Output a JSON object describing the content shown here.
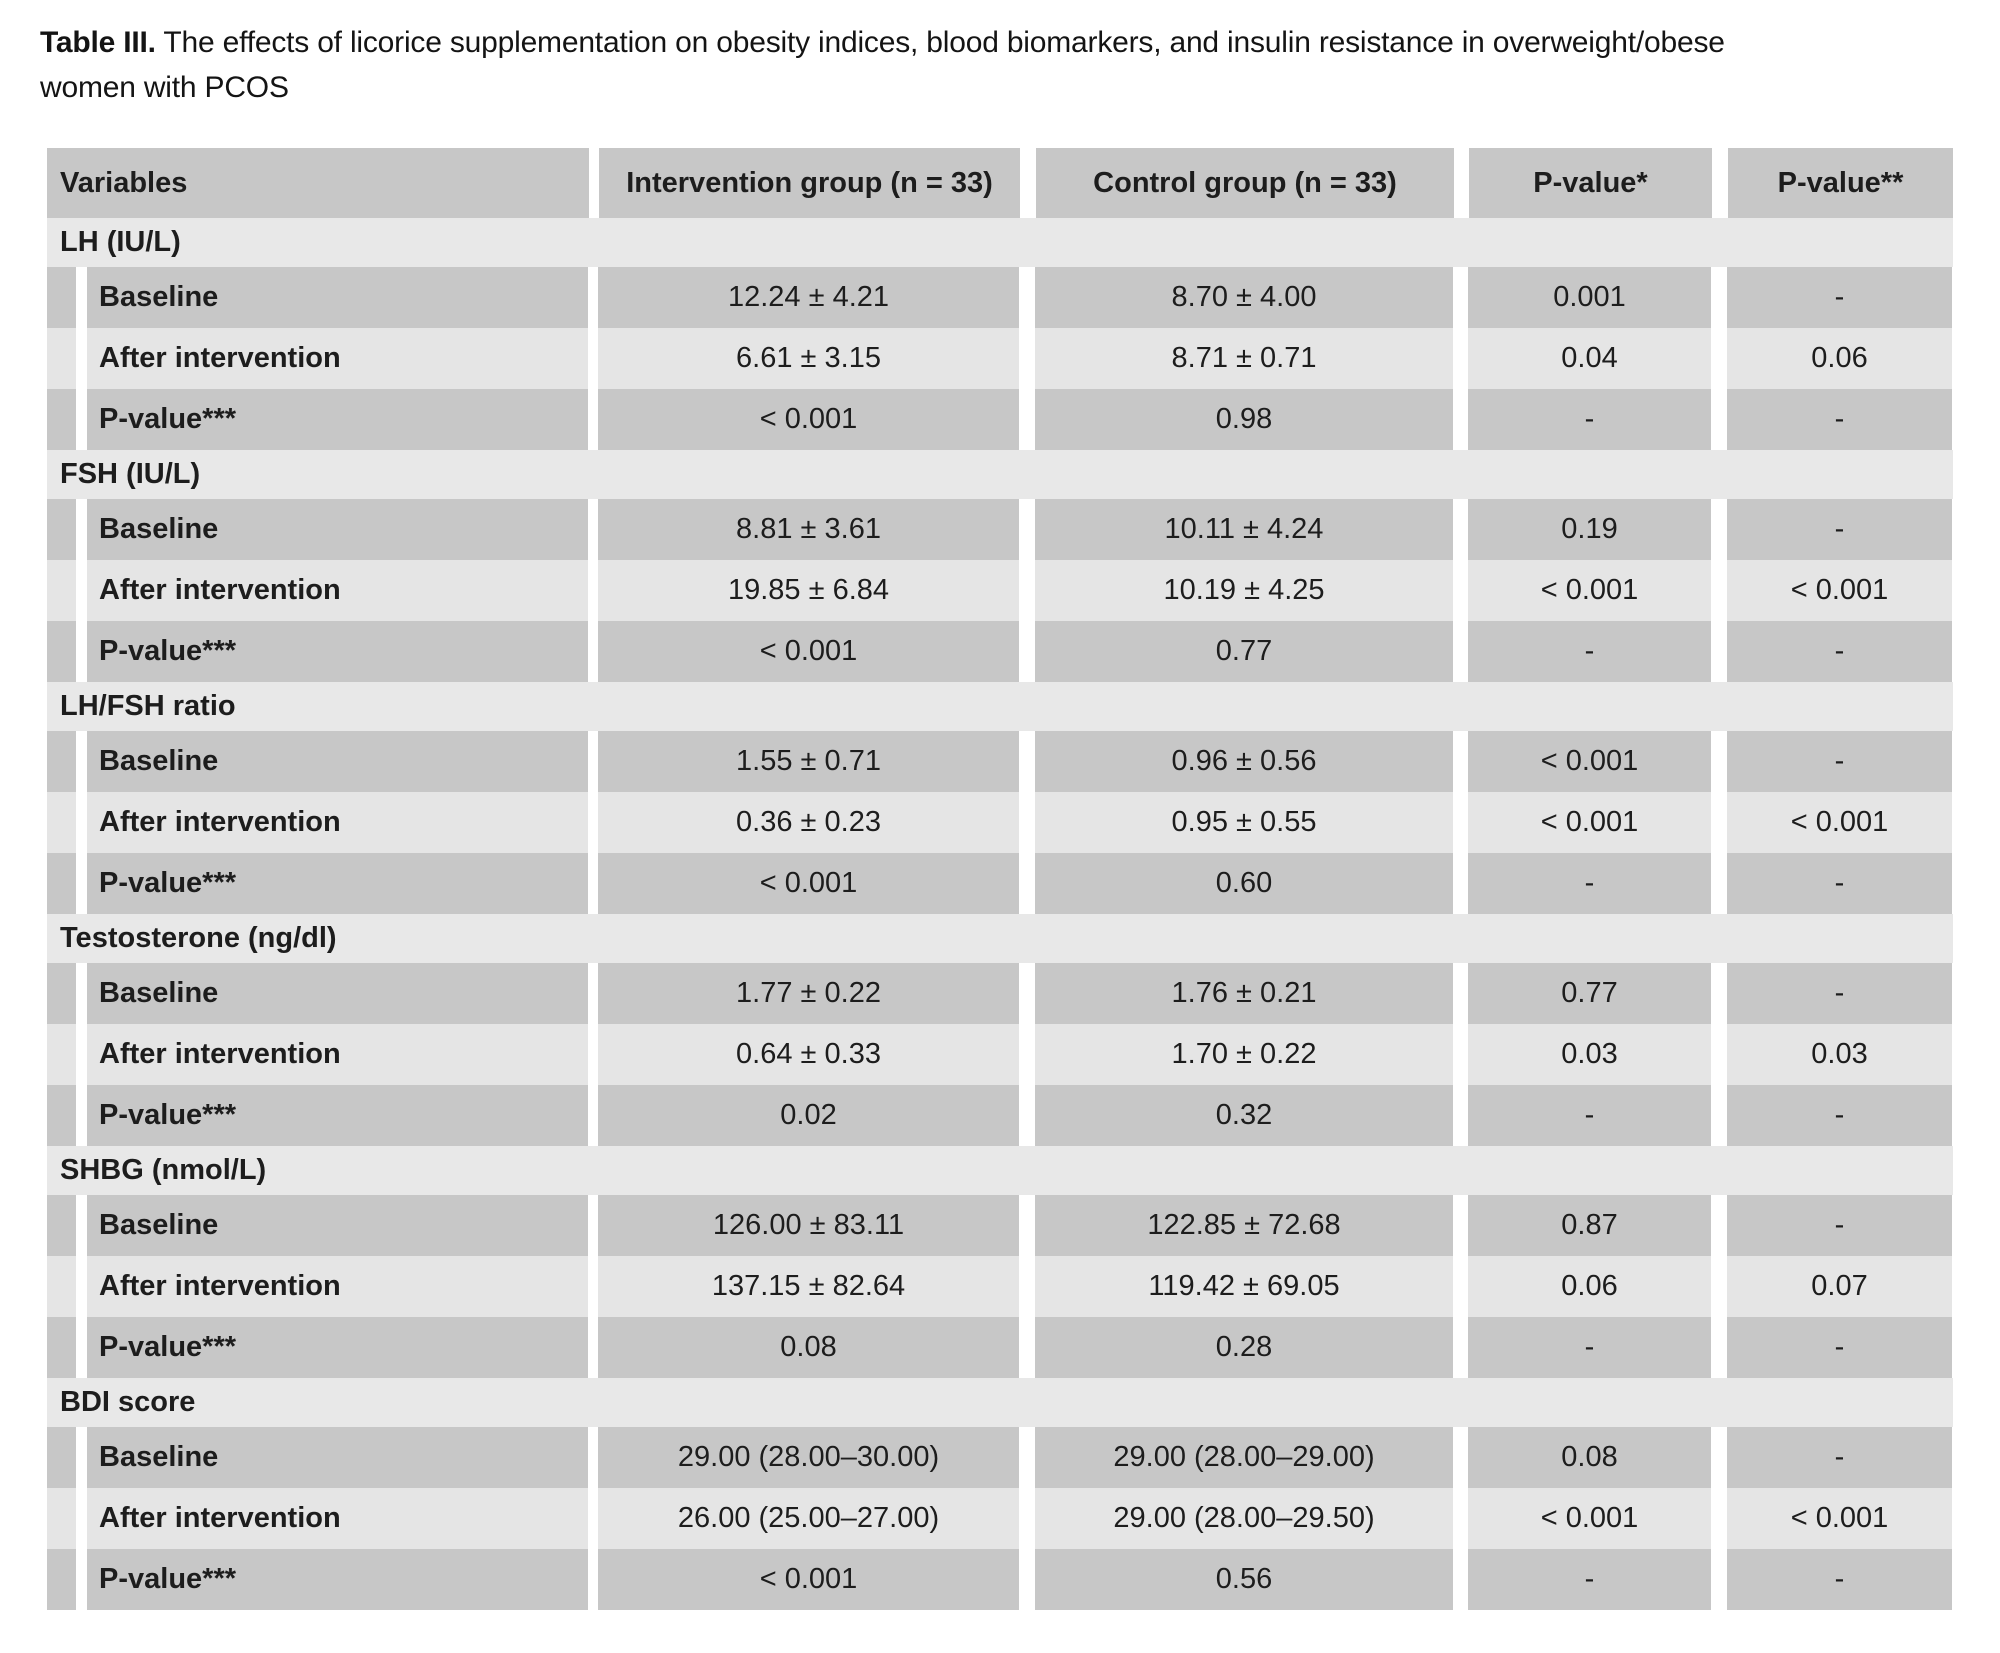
{
  "title": {
    "prefix": "Table III.",
    "line1_rest": "The effects of licorice supplementation on obesity indices, blood biomarkers, and insulin resistance in overweight/obese",
    "line2": "women with PCOS"
  },
  "table": {
    "columns": [
      "Variables",
      "Intervention group (n = 33)",
      "Control group (n = 33)",
      "P-value*",
      "P-value**"
    ],
    "sections": [
      {
        "name": "LH (IU/L)",
        "rows": [
          {
            "label": "Baseline",
            "intervention": "12.24 ± 4.21",
            "control": "8.70 ± 4.00",
            "p1": "0.001",
            "p2": "-"
          },
          {
            "label": "After intervention",
            "intervention": "6.61 ± 3.15",
            "control": "8.71 ± 0.71",
            "p1": "0.04",
            "p2": "0.06"
          },
          {
            "label": "P-value***",
            "intervention": "< 0.001",
            "control": "0.98",
            "p1": "-",
            "p2": "-"
          }
        ]
      },
      {
        "name": "FSH (IU/L)",
        "rows": [
          {
            "label": "Baseline",
            "intervention": "8.81 ± 3.61",
            "control": "10.11 ± 4.24",
            "p1": "0.19",
            "p2": "-"
          },
          {
            "label": "After intervention",
            "intervention": "19.85 ± 6.84",
            "control": "10.19 ± 4.25",
            "p1": "< 0.001",
            "p2": "< 0.001"
          },
          {
            "label": "P-value***",
            "intervention": "< 0.001",
            "control": "0.77",
            "p1": "-",
            "p2": "-"
          }
        ]
      },
      {
        "name": "LH/FSH ratio",
        "rows": [
          {
            "label": "Baseline",
            "intervention": "1.55 ± 0.71",
            "control": "0.96 ± 0.56",
            "p1": "< 0.001",
            "p2": "-"
          },
          {
            "label": "After intervention",
            "intervention": "0.36 ± 0.23",
            "control": "0.95 ± 0.55",
            "p1": "< 0.001",
            "p2": "< 0.001"
          },
          {
            "label": "P-value***",
            "intervention": "< 0.001",
            "control": "0.60",
            "p1": "-",
            "p2": "-"
          }
        ]
      },
      {
        "name": "Testosterone (ng/dl)",
        "rows": [
          {
            "label": "Baseline",
            "intervention": "1.77 ± 0.22",
            "control": "1.76 ± 0.21",
            "p1": "0.77",
            "p2": "-"
          },
          {
            "label": "After intervention",
            "intervention": "0.64 ± 0.33",
            "control": "1.70 ± 0.22",
            "p1": "0.03",
            "p2": "0.03"
          },
          {
            "label": "P-value***",
            "intervention": "0.02",
            "control": "0.32",
            "p1": "-",
            "p2": "-"
          }
        ]
      },
      {
        "name": "SHBG (nmol/L)",
        "rows": [
          {
            "label": "Baseline",
            "intervention": "126.00 ± 83.11",
            "control": "122.85 ± 72.68",
            "p1": "0.87",
            "p2": "-"
          },
          {
            "label": "After intervention",
            "intervention": "137.15 ± 82.64",
            "control": "119.42 ± 69.05",
            "p1": "0.06",
            "p2": "0.07"
          },
          {
            "label": "P-value***",
            "intervention": "0.08",
            "control": "0.28",
            "p1": "-",
            "p2": "-"
          }
        ]
      },
      {
        "name": "BDI score",
        "rows": [
          {
            "label": "Baseline",
            "intervention": "29.00 (28.00–30.00)",
            "control": "29.00 (28.00–29.00)",
            "p1": "0.08",
            "p2": "-"
          },
          {
            "label": "After intervention",
            "intervention": "26.00 (25.00–27.00)",
            "control": "29.00 (28.00–29.50)",
            "p1": "< 0.001",
            "p2": "< 0.001"
          },
          {
            "label": "P-value***",
            "intervention": "< 0.001",
            "control": "0.56",
            "p1": "-",
            "p2": "-"
          }
        ]
      }
    ]
  },
  "colors": {
    "row_dark": "#c7c7c7",
    "row_light": "#e5e5e5",
    "section_bg": "#e8e8e8",
    "text": "#1d1d1d",
    "page_bg": "#ffffff"
  }
}
